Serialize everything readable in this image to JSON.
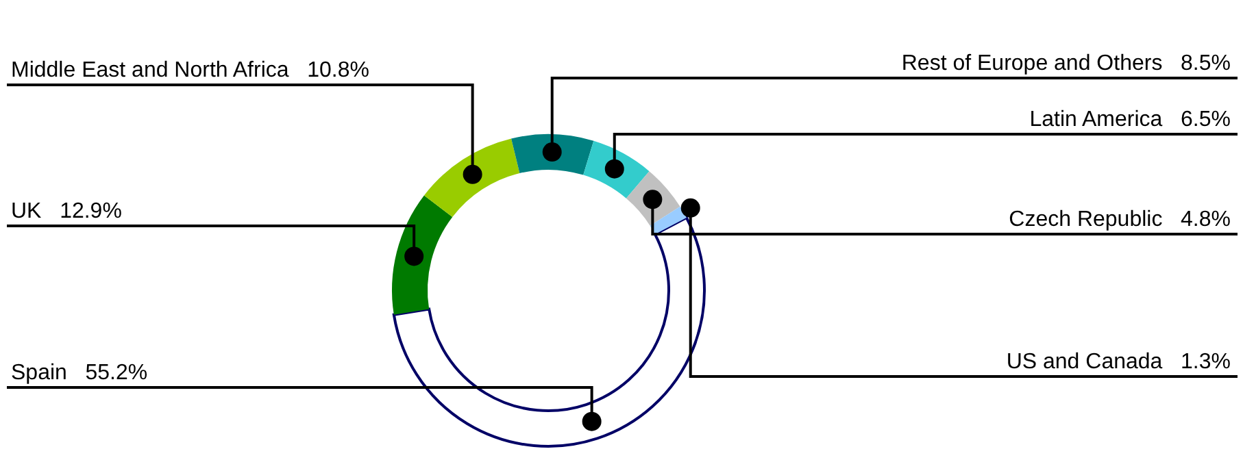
{
  "chart_data": {
    "type": "donut",
    "categories": [
      "UK",
      "Middle East and North Africa",
      "Rest of Europe and Others",
      "Latin America",
      "Czech Republic",
      "US and Canada",
      "Spain"
    ],
    "values": [
      12.9,
      10.8,
      8.5,
      6.5,
      4.8,
      1.3,
      55.2
    ],
    "value_labels": [
      "12.9%",
      "10.8%",
      "8.5%",
      "6.5%",
      "4.8%",
      "1.3%",
      "55.2%"
    ],
    "colors": [
      "#007a00",
      "#99cc00",
      "#008080",
      "#33cccc",
      "#c0c0c0",
      "#99ccff",
      "#ffffff"
    ]
  }
}
